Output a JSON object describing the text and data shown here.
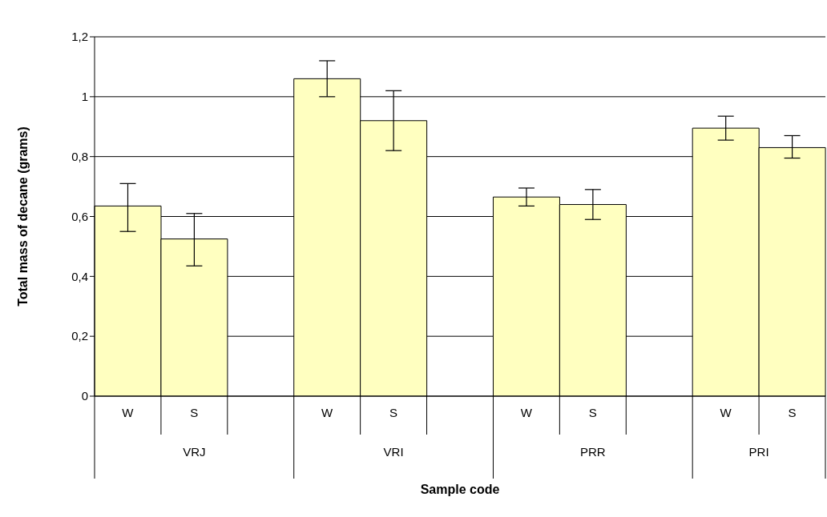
{
  "chart_data": {
    "type": "bar",
    "xlabel": "Sample code",
    "ylabel": "Total mass of decane (grams)",
    "categories": [
      "W",
      "S",
      null,
      "W",
      "S",
      null,
      "W",
      "S",
      null,
      "W",
      "S"
    ],
    "annotations": [
      "VRJ",
      "VRI",
      "PRR",
      "PRI"
    ],
    "series": [
      {
        "color": "#ffffc0",
        "values": [
          0.635,
          0.525,
          null,
          1.06,
          0.92,
          null,
          0.665,
          0.64,
          null,
          0.895,
          0.83
        ],
        "errors": [
          [
            0.55,
            0.71
          ],
          [
            0.435,
            0.61
          ],
          null,
          [
            1.0,
            1.12
          ],
          [
            0.82,
            1.02
          ],
          null,
          [
            0.635,
            0.695
          ],
          [
            0.59,
            0.69
          ],
          null,
          [
            0.855,
            0.935
          ],
          [
            0.795,
            0.87
          ]
        ]
      }
    ],
    "ylim": [
      0,
      1.2
    ],
    "yticks": [
      0,
      {
        "value": 0.2,
        "label": "0,2"
      },
      {
        "value": 0.4,
        "label": "0,4"
      },
      {
        "value": 0.6,
        "label": "0,6"
      },
      {
        "value": 0.8,
        "label": "0,8"
      },
      1,
      {
        "value": 1.2,
        "label": "1,2"
      }
    ],
    "grid": "y",
    "legend": false
  }
}
